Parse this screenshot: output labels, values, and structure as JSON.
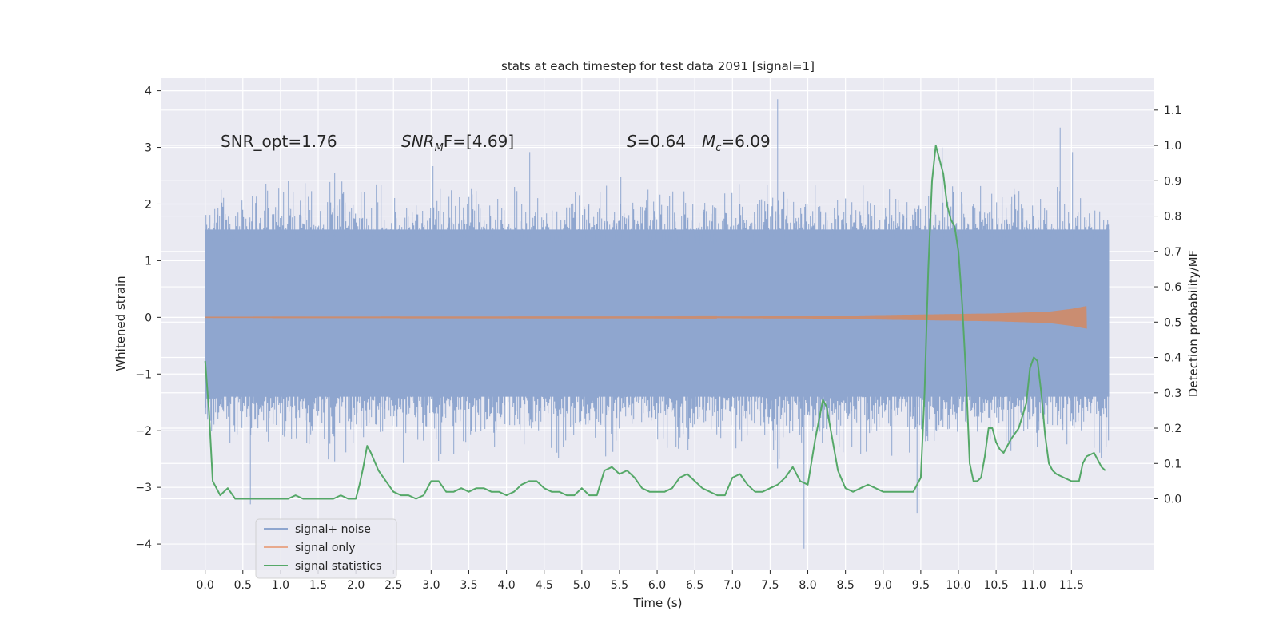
{
  "chart_data": {
    "type": "line",
    "title": "stats at each timestep for test data 2091 [signal=1]",
    "xlabel": "Time (s)",
    "ylabel_left": "Whitened strain",
    "ylabel_right": "Detection probability/MF",
    "xlim": [
      -0.58,
      12.6
    ],
    "ylim_left": [
      -4.45,
      4.22
    ],
    "ylim_right": [
      -0.2,
      1.19
    ],
    "xticks": [
      "0.0",
      "0.5",
      "1.0",
      "1.5",
      "2.0",
      "2.5",
      "3.0",
      "3.5",
      "4.0",
      "4.5",
      "5.0",
      "5.5",
      "6.0",
      "6.5",
      "7.0",
      "7.5",
      "8.0",
      "8.5",
      "9.0",
      "9.5",
      "10.0",
      "10.5",
      "11.0",
      "11.5"
    ],
    "yticks_left": [
      -4,
      -3,
      -2,
      -1,
      0,
      1,
      2,
      3,
      4
    ],
    "yticks_left_labels": [
      "−4",
      "−3",
      "−2",
      "−1",
      "0",
      "1",
      "2",
      "3",
      "4"
    ],
    "yticks_right": [
      "0.0",
      "0.1",
      "0.2",
      "0.3",
      "0.4",
      "0.5",
      "0.6",
      "0.7",
      "0.8",
      "0.9",
      "1.0",
      "1.1"
    ],
    "grid": true,
    "legend_position": "lower-left",
    "annotations": {
      "snr_opt": "SNR_opt=1.76",
      "snr_mf_main": "SNR",
      "snr_mf_sub": "M",
      "snr_mf_rest": "F=[4.69]",
      "s_main": "S",
      "s_rest": "=0.64",
      "mc_main": "M",
      "mc_sub": "c",
      "mc_rest": "=6.09"
    },
    "series": [
      {
        "name": "signal+ noise",
        "color": "#8fa6cf",
        "kind": "noise-band",
        "x_range": [
          0.0,
          12.0
        ],
        "core_band": [
          -1.4,
          1.55
        ],
        "max_abs_peak": 4.08
      },
      {
        "name": "signal only",
        "color": "#dd8452",
        "kind": "chirp",
        "x_range": [
          0.0,
          11.7
        ],
        "envelope": [
          [
            0.0,
            0.005
          ],
          [
            6.0,
            0.01
          ],
          [
            8.0,
            0.02
          ],
          [
            9.5,
            0.05
          ],
          [
            10.5,
            0.07
          ],
          [
            11.2,
            0.1
          ],
          [
            11.5,
            0.15
          ],
          [
            11.7,
            0.2
          ]
        ]
      },
      {
        "name": "signal statistics",
        "color": "#55a868",
        "axis": "right",
        "x": [
          0.0,
          0.05,
          0.1,
          0.15,
          0.2,
          0.3,
          0.4,
          0.5,
          0.6,
          0.7,
          0.8,
          0.9,
          1.0,
          1.1,
          1.2,
          1.3,
          1.4,
          1.5,
          1.6,
          1.7,
          1.8,
          1.9,
          2.0,
          2.05,
          2.1,
          2.15,
          2.2,
          2.3,
          2.4,
          2.5,
          2.6,
          2.7,
          2.8,
          2.9,
          3.0,
          3.1,
          3.2,
          3.3,
          3.4,
          3.5,
          3.6,
          3.7,
          3.8,
          3.9,
          4.0,
          4.1,
          4.2,
          4.3,
          4.4,
          4.5,
          4.6,
          4.7,
          4.8,
          4.9,
          5.0,
          5.1,
          5.2,
          5.3,
          5.4,
          5.5,
          5.6,
          5.7,
          5.8,
          5.9,
          6.0,
          6.1,
          6.2,
          6.3,
          6.4,
          6.5,
          6.6,
          6.7,
          6.8,
          6.9,
          7.0,
          7.1,
          7.2,
          7.3,
          7.4,
          7.5,
          7.6,
          7.7,
          7.8,
          7.9,
          8.0,
          8.1,
          8.2,
          8.25,
          8.3,
          8.35,
          8.4,
          8.5,
          8.6,
          8.7,
          8.8,
          8.9,
          9.0,
          9.1,
          9.2,
          9.3,
          9.4,
          9.5,
          9.55,
          9.6,
          9.65,
          9.7,
          9.75,
          9.8,
          9.85,
          9.9,
          9.95,
          10.0,
          10.05,
          10.1,
          10.15,
          10.2,
          10.25,
          10.3,
          10.35,
          10.4,
          10.45,
          10.5,
          10.55,
          10.6,
          10.65,
          10.7,
          10.8,
          10.9,
          10.95,
          11.0,
          11.05,
          11.1,
          11.15,
          11.2,
          11.25,
          11.3,
          11.4,
          11.5,
          11.6,
          11.65,
          11.7,
          11.8,
          11.9,
          11.95
        ],
        "y": [
          0.39,
          0.25,
          0.05,
          0.03,
          0.01,
          0.03,
          0.0,
          0.0,
          0.0,
          0.0,
          0.0,
          0.0,
          0.0,
          0.0,
          0.01,
          0.0,
          0.0,
          0.0,
          0.0,
          0.0,
          0.01,
          0.0,
          0.0,
          0.04,
          0.09,
          0.15,
          0.13,
          0.08,
          0.05,
          0.02,
          0.01,
          0.01,
          0.0,
          0.01,
          0.05,
          0.05,
          0.02,
          0.02,
          0.03,
          0.02,
          0.03,
          0.03,
          0.02,
          0.02,
          0.01,
          0.02,
          0.04,
          0.05,
          0.05,
          0.03,
          0.02,
          0.02,
          0.01,
          0.01,
          0.03,
          0.01,
          0.01,
          0.08,
          0.09,
          0.07,
          0.08,
          0.06,
          0.03,
          0.02,
          0.02,
          0.02,
          0.03,
          0.06,
          0.07,
          0.05,
          0.03,
          0.02,
          0.01,
          0.01,
          0.06,
          0.07,
          0.04,
          0.02,
          0.02,
          0.03,
          0.04,
          0.06,
          0.09,
          0.05,
          0.04,
          0.17,
          0.28,
          0.26,
          0.2,
          0.14,
          0.08,
          0.03,
          0.02,
          0.03,
          0.04,
          0.03,
          0.02,
          0.02,
          0.02,
          0.02,
          0.02,
          0.06,
          0.3,
          0.65,
          0.9,
          1.0,
          0.96,
          0.92,
          0.83,
          0.79,
          0.77,
          0.7,
          0.55,
          0.35,
          0.1,
          0.05,
          0.05,
          0.06,
          0.12,
          0.2,
          0.2,
          0.16,
          0.14,
          0.13,
          0.15,
          0.17,
          0.2,
          0.27,
          0.37,
          0.4,
          0.39,
          0.3,
          0.18,
          0.1,
          0.08,
          0.07,
          0.06,
          0.05,
          0.05,
          0.1,
          0.12,
          0.13,
          0.09,
          0.08
        ]
      }
    ]
  }
}
